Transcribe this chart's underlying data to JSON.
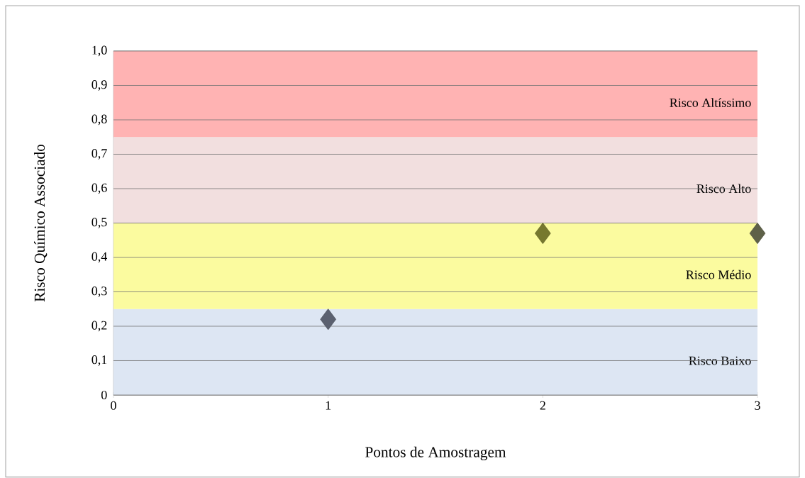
{
  "chart_data": {
    "type": "scatter",
    "xlabel": "Pontos de Amostragem",
    "ylabel": "Risco Químico Associado",
    "x": [
      1,
      2,
      3
    ],
    "values": [
      0.22,
      0.47,
      0.47
    ],
    "colors": [
      "#5b6170",
      "#76782e",
      "#5e6148"
    ],
    "marker": "diamond",
    "grid": "y",
    "xlim": [
      0,
      3
    ],
    "xticks": [
      0,
      1,
      2,
      3
    ],
    "ylim": [
      0,
      1
    ],
    "yticks": [
      0,
      {
        "value": 0.1,
        "label": "0,1"
      },
      {
        "value": 0.2,
        "label": "0,2"
      },
      {
        "value": 0.3,
        "label": "0,3"
      },
      {
        "value": 0.4,
        "label": "0,4"
      },
      {
        "value": 0.5,
        "label": "0,5"
      },
      {
        "value": 0.6,
        "label": "0,6"
      },
      {
        "value": 0.7,
        "label": "0,7"
      },
      {
        "value": 0.8,
        "label": "0,8"
      },
      {
        "value": 0.9,
        "label": "0,9"
      },
      {
        "value": 1.0,
        "label": "1,0"
      }
    ],
    "bands": [
      {
        "axis": "y",
        "from": 0,
        "to": 0.25,
        "label": "Risco Baixo",
        "color": "#dde6f3"
      },
      {
        "axis": "y",
        "from": 0.25,
        "to": 0.5,
        "label": "Risco Médio",
        "color": "#fbfb9f"
      },
      {
        "axis": "y",
        "from": 0.5,
        "to": 0.75,
        "label": "Risco Alto",
        "color": "#f2dfdf"
      },
      {
        "axis": "y",
        "from": 0.75,
        "to": 1.0,
        "label": "Risco Altíssimo",
        "color": "#ffb3b3"
      }
    ]
  }
}
